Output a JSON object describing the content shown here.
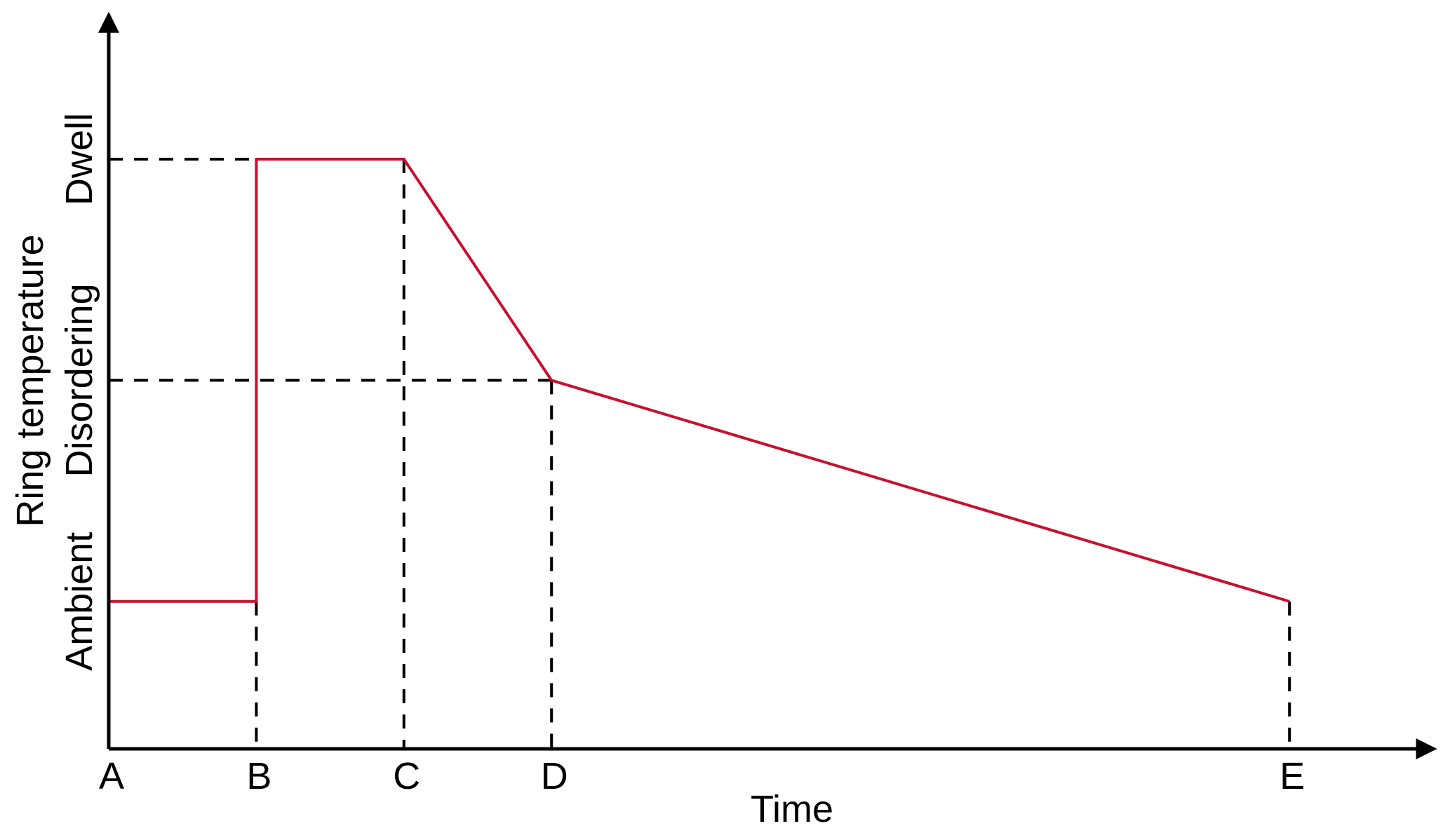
{
  "figure": {
    "background": "#ffffff",
    "axis_color": "#000000",
    "guide_color": "#000000",
    "line_color": "#c8102e"
  },
  "chart_data": {
    "type": "line",
    "title": "",
    "xlabel": "Time",
    "ylabel": "Ring temperature",
    "xlim": [
      0,
      9
    ],
    "ylim": [
      0,
      5
    ],
    "grid": false,
    "legend": null,
    "x_ticks": [
      {
        "label": "A",
        "x": 0
      },
      {
        "label": "B",
        "x": 1
      },
      {
        "label": "C",
        "x": 2
      },
      {
        "label": "D",
        "x": 3
      },
      {
        "label": "E",
        "x": 8
      }
    ],
    "y_ticks": [
      {
        "label": "Ambient",
        "y": 1
      },
      {
        "label": "Disordering",
        "y": 2.5
      },
      {
        "label": "Dwell",
        "y": 4
      }
    ],
    "series": [
      {
        "name": "ring-temperature-profile",
        "color": "#c8102e",
        "points": [
          [
            0,
            1
          ],
          [
            1,
            1
          ],
          [
            1,
            4
          ],
          [
            2,
            4
          ],
          [
            3,
            2.5
          ],
          [
            8,
            1
          ]
        ]
      }
    ],
    "guides": {
      "horizontal": [
        {
          "level_label": "Dwell",
          "y": 4,
          "x_from": 0,
          "x_to": 1
        },
        {
          "level_label": "Disordering",
          "y": 2.5,
          "x_from": 0,
          "x_to": 3
        }
      ],
      "vertical": [
        {
          "at_label": "B",
          "x": 1,
          "y_from": 0,
          "y_to": 1
        },
        {
          "at_label": "C",
          "x": 2,
          "y_from": 0,
          "y_to": 4
        },
        {
          "at_label": "D",
          "x": 3,
          "y_from": 0,
          "y_to": 2.5
        },
        {
          "at_label": "E",
          "x": 8,
          "y_from": 0,
          "y_to": 1
        }
      ]
    }
  }
}
